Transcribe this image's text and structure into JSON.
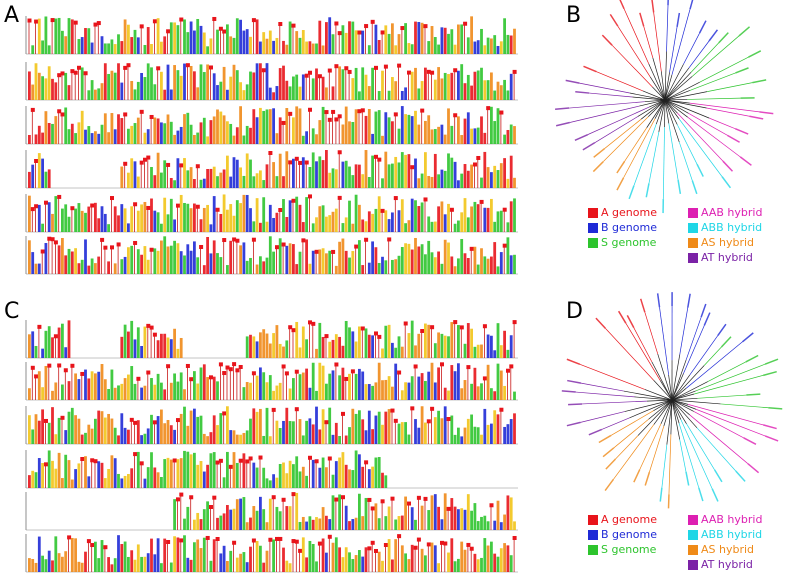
{
  "panels": [
    {
      "label": "A"
    },
    {
      "label": "B"
    },
    {
      "label": "C"
    },
    {
      "label": "D"
    }
  ],
  "legends": [
    {
      "items": [
        {
          "label": "A genome",
          "color": "#e8141b"
        },
        {
          "label": "B genome",
          "color": "#1f2ad6"
        },
        {
          "label": "S genome",
          "color": "#2dc42d"
        },
        {
          "label": "AAB hybrid",
          "color": "#dd1fb2"
        },
        {
          "label": "ABB hybrid",
          "color": "#1fd6e6"
        },
        {
          "label": "AS hybrid",
          "color": "#ef8a18"
        },
        {
          "label": "AT hybrid",
          "color": "#7b22a6"
        }
      ]
    },
    {
      "items": [
        {
          "label": "A genome",
          "color": "#e8141b"
        },
        {
          "label": "B genome",
          "color": "#1f2ad6"
        },
        {
          "label": "S genome",
          "color": "#2dc42d"
        },
        {
          "label": "AAB hybrid",
          "color": "#dd1fb2"
        },
        {
          "label": "ABB hybrid",
          "color": "#1fd6e6"
        },
        {
          "label": "AS hybrid",
          "color": "#ef8a18"
        },
        {
          "label": "AT hybrid",
          "color": "#7b22a6"
        }
      ]
    }
  ]
}
